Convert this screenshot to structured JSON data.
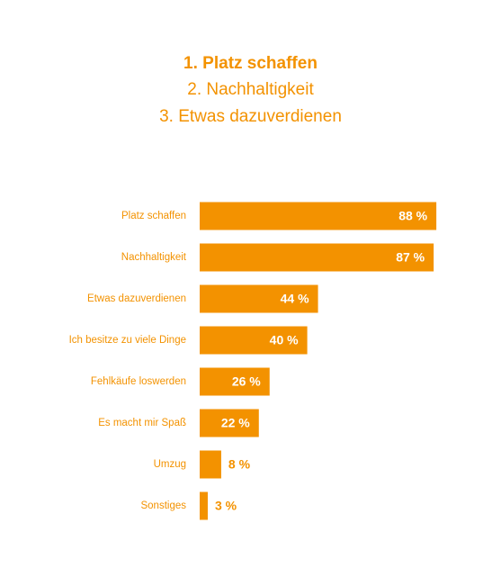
{
  "headlines": [
    "1. Platz schaffen",
    "2. Nachhaltigkeit",
    "3. Etwas dazuverdienen"
  ],
  "colors": {
    "accent": "#f39200",
    "label_inside": "#ffffff"
  },
  "chart_data": {
    "type": "bar",
    "orientation": "horizontal",
    "categories": [
      "Platz schaffen",
      "Nachhaltigkeit",
      "Etwas dazuverdienen",
      "Ich besitze zu viele Dinge",
      "Fehlkäufe loswerden",
      "Es macht mir Spaß",
      "Umzug",
      "Sonstiges"
    ],
    "values": [
      88,
      87,
      44,
      40,
      26,
      22,
      8,
      3
    ],
    "value_labels": [
      "88 %",
      "87 %",
      "44 %",
      "40 %",
      "26 %",
      "22 %",
      "8 %",
      "3 %"
    ],
    "unit": "%",
    "xlim": [
      0,
      100
    ],
    "grid": false,
    "legend": "none"
  }
}
